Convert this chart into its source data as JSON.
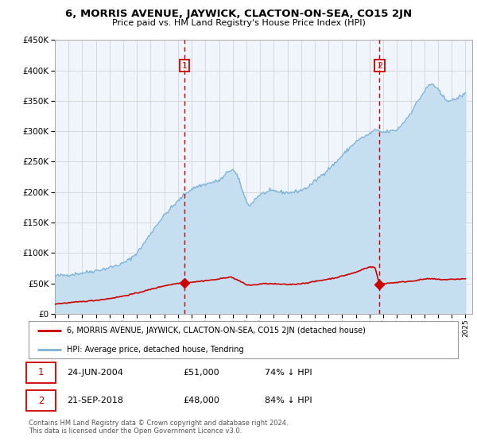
{
  "title": "6, MORRIS AVENUE, JAYWICK, CLACTON-ON-SEA, CO15 2JN",
  "subtitle": "Price paid vs. HM Land Registry's House Price Index (HPI)",
  "hpi_color": "#7ab0d8",
  "hpi_fill_color": "#c5dff0",
  "price_color": "#cc0000",
  "grid_color": "#cccccc",
  "plot_bg": "#f0f5fc",
  "ylim": [
    0,
    450000
  ],
  "xlim": [
    1995.0,
    2025.5
  ],
  "sale1_date": 2004.48,
  "sale1_price": 51000,
  "sale1_label": "1",
  "sale1_text": "24-JUN-2004",
  "sale1_price_str": "£51,000",
  "sale1_pct": "74% ↓ HPI",
  "sale2_date": 2018.72,
  "sale2_price": 48000,
  "sale2_label": "2",
  "sale2_text": "21-SEP-2018",
  "sale2_price_str": "£48,000",
  "sale2_pct": "84% ↓ HPI",
  "legend_label1": "6, MORRIS AVENUE, JAYWICK, CLACTON-ON-SEA, CO15 2JN (detached house)",
  "legend_label2": "HPI: Average price, detached house, Tendring",
  "footer": "Contains HM Land Registry data © Crown copyright and database right 2024.\nThis data is licensed under the Open Government Licence v3.0.",
  "hpi_anchors": [
    [
      1995.0,
      62000
    ],
    [
      1995.5,
      63000
    ],
    [
      1996.0,
      64000
    ],
    [
      1996.5,
      65500
    ],
    [
      1997.0,
      67000
    ],
    [
      1997.5,
      69000
    ],
    [
      1998.0,
      71000
    ],
    [
      1998.5,
      73000
    ],
    [
      1999.0,
      76000
    ],
    [
      1999.5,
      79000
    ],
    [
      2000.0,
      83000
    ],
    [
      2000.5,
      90000
    ],
    [
      2001.0,
      100000
    ],
    [
      2001.5,
      115000
    ],
    [
      2002.0,
      132000
    ],
    [
      2002.5,
      148000
    ],
    [
      2003.0,
      162000
    ],
    [
      2003.5,
      174000
    ],
    [
      2004.0,
      185000
    ],
    [
      2004.5,
      197000
    ],
    [
      2005.0,
      205000
    ],
    [
      2005.5,
      210000
    ],
    [
      2006.0,
      213000
    ],
    [
      2006.5,
      216000
    ],
    [
      2007.0,
      219000
    ],
    [
      2007.3,
      224000
    ],
    [
      2007.7,
      235000
    ],
    [
      2008.0,
      237000
    ],
    [
      2008.3,
      228000
    ],
    [
      2008.6,
      210000
    ],
    [
      2009.0,
      183000
    ],
    [
      2009.3,
      178000
    ],
    [
      2009.6,
      188000
    ],
    [
      2010.0,
      196000
    ],
    [
      2010.5,
      200000
    ],
    [
      2011.0,
      202000
    ],
    [
      2011.5,
      200000
    ],
    [
      2012.0,
      199000
    ],
    [
      2012.5,
      200000
    ],
    [
      2013.0,
      203000
    ],
    [
      2013.5,
      208000
    ],
    [
      2014.0,
      218000
    ],
    [
      2014.5,
      228000
    ],
    [
      2015.0,
      238000
    ],
    [
      2015.5,
      248000
    ],
    [
      2016.0,
      260000
    ],
    [
      2016.5,
      272000
    ],
    [
      2017.0,
      283000
    ],
    [
      2017.5,
      290000
    ],
    [
      2018.0,
      295000
    ],
    [
      2018.3,
      302000
    ],
    [
      2018.7,
      300000
    ],
    [
      2019.0,
      298000
    ],
    [
      2019.5,
      300000
    ],
    [
      2020.0,
      302000
    ],
    [
      2020.5,
      315000
    ],
    [
      2021.0,
      330000
    ],
    [
      2021.3,
      342000
    ],
    [
      2021.6,
      352000
    ],
    [
      2022.0,
      365000
    ],
    [
      2022.3,
      375000
    ],
    [
      2022.6,
      378000
    ],
    [
      2023.0,
      368000
    ],
    [
      2023.3,
      358000
    ],
    [
      2023.6,
      352000
    ],
    [
      2024.0,
      350000
    ],
    [
      2024.3,
      353000
    ],
    [
      2024.6,
      357000
    ],
    [
      2025.0,
      362000
    ]
  ],
  "red_anchors": [
    [
      1995.0,
      16000
    ],
    [
      1996.0,
      18000
    ],
    [
      1997.0,
      20000
    ],
    [
      1998.0,
      22000
    ],
    [
      1999.0,
      25000
    ],
    [
      2000.0,
      29000
    ],
    [
      2001.0,
      34000
    ],
    [
      2002.0,
      40000
    ],
    [
      2003.0,
      46000
    ],
    [
      2004.0,
      50000
    ],
    [
      2004.48,
      51000
    ],
    [
      2005.0,
      52000
    ],
    [
      2005.5,
      53000
    ],
    [
      2006.0,
      54500
    ],
    [
      2006.5,
      55500
    ],
    [
      2007.0,
      57000
    ],
    [
      2007.4,
      59000
    ],
    [
      2007.8,
      60500
    ],
    [
      2008.0,
      59000
    ],
    [
      2008.4,
      55000
    ],
    [
      2008.8,
      50000
    ],
    [
      2009.0,
      47500
    ],
    [
      2009.4,
      47000
    ],
    [
      2009.8,
      48000
    ],
    [
      2010.0,
      49000
    ],
    [
      2010.5,
      49500
    ],
    [
      2011.0,
      49000
    ],
    [
      2011.5,
      48500
    ],
    [
      2012.0,
      48000
    ],
    [
      2012.5,
      48500
    ],
    [
      2013.0,
      49500
    ],
    [
      2013.5,
      51000
    ],
    [
      2014.0,
      53000
    ],
    [
      2014.5,
      55000
    ],
    [
      2015.0,
      57000
    ],
    [
      2015.5,
      59000
    ],
    [
      2016.0,
      62000
    ],
    [
      2016.5,
      65000
    ],
    [
      2017.0,
      68000
    ],
    [
      2017.3,
      71000
    ],
    [
      2017.6,
      74000
    ],
    [
      2018.0,
      77000
    ],
    [
      2018.4,
      76000
    ],
    [
      2018.72,
      48000
    ],
    [
      2019.0,
      49500
    ],
    [
      2019.5,
      50500
    ],
    [
      2020.0,
      51500
    ],
    [
      2020.5,
      52500
    ],
    [
      2021.0,
      53500
    ],
    [
      2021.5,
      55000
    ],
    [
      2022.0,
      57000
    ],
    [
      2022.5,
      57500
    ],
    [
      2023.0,
      56500
    ],
    [
      2023.5,
      56000
    ],
    [
      2024.0,
      56500
    ],
    [
      2024.5,
      57000
    ],
    [
      2025.0,
      57500
    ]
  ]
}
